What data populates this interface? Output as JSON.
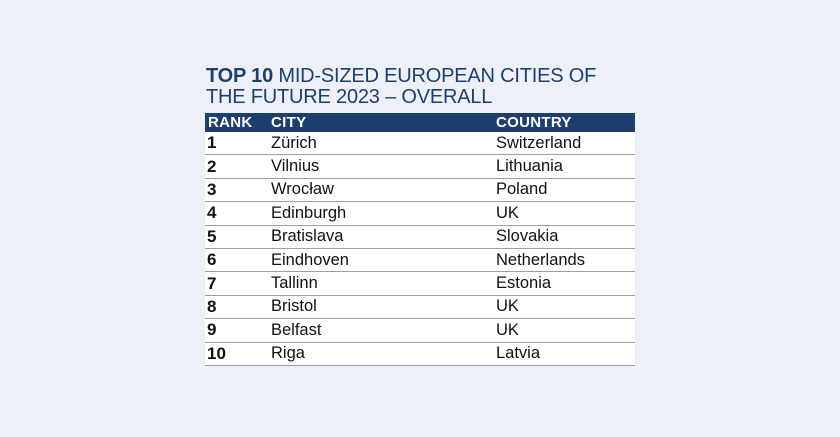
{
  "title": {
    "bold": "TOP 10",
    "rest": " MID-SIZED EUROPEAN CITIES OF THE FUTURE 2023 – OVERALL"
  },
  "columns": {
    "rank": "RANK",
    "city": "CITY",
    "country": "COUNTRY"
  },
  "rows": [
    {
      "rank": "1",
      "city": "Zürich",
      "country": "Switzerland"
    },
    {
      "rank": "2",
      "city": "Vilnius",
      "country": "Lithuania"
    },
    {
      "rank": "3",
      "city": "Wrocław",
      "country": "Poland"
    },
    {
      "rank": "4",
      "city": "Edinburgh",
      "country": "UK"
    },
    {
      "rank": "5",
      "city": "Bratislava",
      "country": "Slovakia"
    },
    {
      "rank": "6",
      "city": "Eindhoven",
      "country": "Netherlands"
    },
    {
      "rank": "7",
      "city": "Tallinn",
      "country": "Estonia"
    },
    {
      "rank": "8",
      "city": "Bristol",
      "country": "UK"
    },
    {
      "rank": "9",
      "city": "Belfast",
      "country": "UK"
    },
    {
      "rank": "10",
      "city": "Riga",
      "country": "Latvia"
    }
  ],
  "colors": {
    "background": "#eef0f7",
    "header": "#1e3f6e",
    "title": "#1e3f6e",
    "row": "#ffffff",
    "divider": "#9aa0a8"
  }
}
